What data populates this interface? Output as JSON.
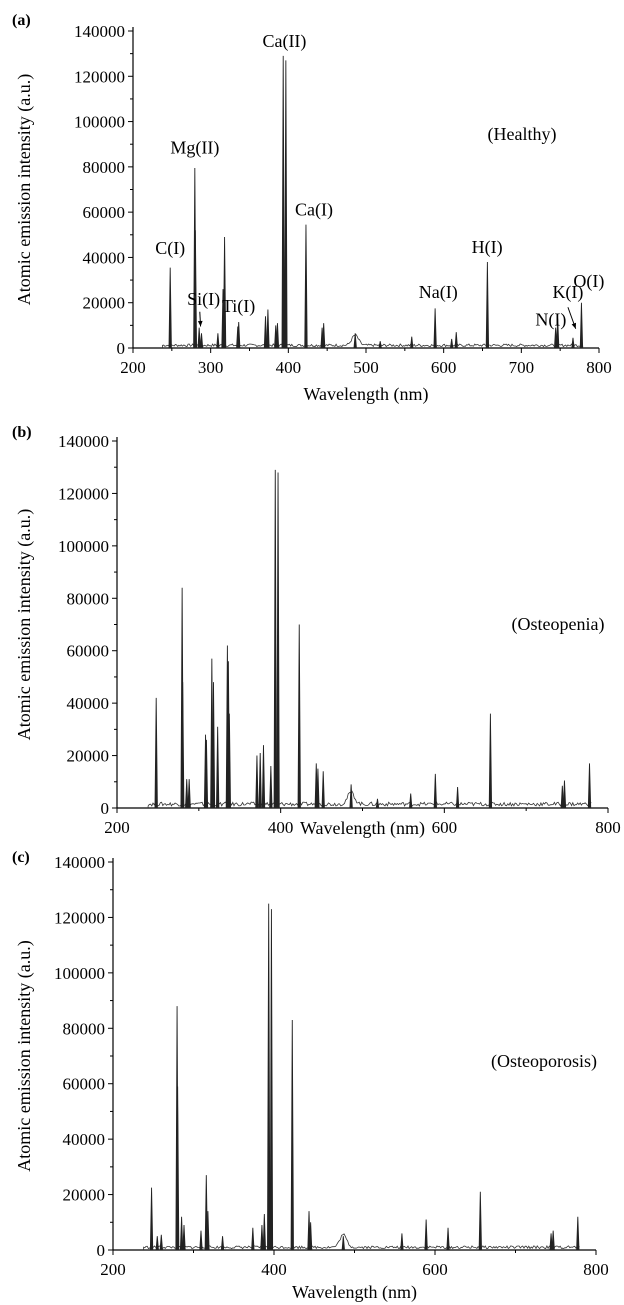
{
  "chart_data": [
    {
      "panel_label": "(a)",
      "type": "line",
      "annotation": "(Healthy)",
      "xlabel": "Wavelength (nm)",
      "ylabel": "Atomic emission intensity (a.u.)",
      "xlim": [
        200,
        800
      ],
      "ylim": [
        0,
        140000
      ],
      "xticks": [
        200,
        300,
        400,
        500,
        600,
        700,
        800
      ],
      "yticks": [
        0,
        20000,
        40000,
        60000,
        80000,
        100000,
        120000,
        140000
      ],
      "baseline": 1200,
      "peaks": [
        [
          247.9,
          35500
        ],
        [
          279.6,
          79500
        ],
        [
          280.3,
          52000
        ],
        [
          285.2,
          9000
        ],
        [
          288.2,
          6500
        ],
        [
          309.3,
          6500
        ],
        [
          315.9,
          26000
        ],
        [
          317.9,
          49000
        ],
        [
          334.9,
          9500
        ],
        [
          336.1,
          11500
        ],
        [
          370.6,
          14000
        ],
        [
          373.7,
          17000
        ],
        [
          383.8,
          10000
        ],
        [
          386,
          11000
        ],
        [
          393.4,
          129000
        ],
        [
          396.8,
          127000
        ],
        [
          422.7,
          54500
        ],
        [
          443.5,
          9000
        ],
        [
          445.5,
          11000
        ],
        [
          486.1,
          6500
        ],
        [
          518.3,
          3000
        ],
        [
          558.9,
          5000
        ],
        [
          589.0,
          17500
        ],
        [
          610.3,
          4000
        ],
        [
          616.2,
          7000
        ],
        [
          656.3,
          38000
        ],
        [
          744.2,
          9000
        ],
        [
          746.8,
          13000
        ],
        [
          766.5,
          4500
        ],
        [
          777.4,
          20000
        ]
      ],
      "line_labels": [
        {
          "text": "C(I)",
          "x": 247.9,
          "y": 41500
        },
        {
          "text": "Mg(II)",
          "x": 279.6,
          "y": 86000
        },
        {
          "text": "Si(I)",
          "x": 291,
          "y": 19000
        },
        {
          "text": "Ti(I)",
          "x": 336,
          "y": 16000
        },
        {
          "text": "Ca(II)",
          "x": 395,
          "y": 133000
        },
        {
          "text": "Ca(I)",
          "x": 433,
          "y": 58500
        },
        {
          "text": "Na(I)",
          "x": 593,
          "y": 22000
        },
        {
          "text": "H(I)",
          "x": 656,
          "y": 42000
        },
        {
          "text": "N(I)",
          "x": 738,
          "y": 10000
        },
        {
          "text": "K(I)",
          "x": 760,
          "y": 22000
        },
        {
          "text": "O(I)",
          "x": 787,
          "y": 27000
        }
      ],
      "arrows": [
        {
          "from": [
            286,
            16000
          ],
          "to": [
            287,
            9500
          ]
        },
        {
          "from": [
            760,
            18000
          ],
          "to": [
            770,
            8500
          ]
        }
      ]
    },
    {
      "panel_label": "(b)",
      "type": "line",
      "annotation": "(Osteopenia)",
      "xlabel": "Wavelength (nm)",
      "ylabel": "Atomic emission intensity (a.u.)",
      "xlim": [
        200,
        800
      ],
      "ylim": [
        0,
        140000
      ],
      "xticks": [
        200,
        400,
        600,
        800
      ],
      "yticks": [
        0,
        20000,
        40000,
        60000,
        80000,
        100000,
        120000,
        140000
      ],
      "baseline": 1500,
      "peaks": [
        [
          247.9,
          42000
        ],
        [
          279.6,
          84000
        ],
        [
          280.3,
          48000
        ],
        [
          285.2,
          11000
        ],
        [
          288.2,
          11000
        ],
        [
          308.2,
          28000
        ],
        [
          309.3,
          26000
        ],
        [
          315.9,
          57000
        ],
        [
          317.9,
          48000
        ],
        [
          323,
          31000
        ],
        [
          334.9,
          62000
        ],
        [
          336.1,
          56000
        ],
        [
          337.3,
          36000
        ],
        [
          371,
          20000
        ],
        [
          375,
          21000
        ],
        [
          379,
          24000
        ],
        [
          388,
          16000
        ],
        [
          393.4,
          129000
        ],
        [
          396.8,
          128000
        ],
        [
          422.7,
          70000
        ],
        [
          443.5,
          17000
        ],
        [
          445.5,
          15000
        ],
        [
          452,
          14000
        ],
        [
          486.1,
          9000
        ],
        [
          518.3,
          3500
        ],
        [
          558.9,
          5500
        ],
        [
          589.0,
          13000
        ],
        [
          616.2,
          8000
        ],
        [
          656.3,
          36000
        ],
        [
          744.2,
          8500
        ],
        [
          746.8,
          10500
        ],
        [
          777.4,
          17000
        ]
      ],
      "line_labels": []
    },
    {
      "panel_label": "(c)",
      "type": "line",
      "annotation": "(Osteoporosis)",
      "xlabel": "Wavelength (nm)",
      "ylabel": "Atomic emission intensity (a.u.)",
      "xlim": [
        200,
        800
      ],
      "ylim": [
        0,
        140000
      ],
      "xticks": [
        200,
        400,
        600,
        800
      ],
      "yticks": [
        0,
        20000,
        40000,
        60000,
        80000,
        100000,
        120000,
        140000
      ],
      "baseline": 1000,
      "peaks": [
        [
          247.9,
          22500
        ],
        [
          255,
          5000
        ],
        [
          260,
          5500
        ],
        [
          279.6,
          88000
        ],
        [
          280.3,
          59000
        ],
        [
          285.2,
          12000
        ],
        [
          288.2,
          9000
        ],
        [
          309.3,
          7000
        ],
        [
          315.9,
          27000
        ],
        [
          317.9,
          14000
        ],
        [
          336.1,
          5000
        ],
        [
          373.7,
          8000
        ],
        [
          385,
          9000
        ],
        [
          388,
          13000
        ],
        [
          393.4,
          125000
        ],
        [
          396.8,
          123000
        ],
        [
          422.7,
          83000
        ],
        [
          443.5,
          14000
        ],
        [
          445.5,
          10000
        ],
        [
          486.1,
          5000
        ],
        [
          558.9,
          6000
        ],
        [
          589.0,
          11000
        ],
        [
          616.2,
          8000
        ],
        [
          656.3,
          21000
        ],
        [
          744.2,
          6000
        ],
        [
          746.8,
          7000
        ],
        [
          777.4,
          12000
        ]
      ],
      "line_labels": []
    }
  ]
}
